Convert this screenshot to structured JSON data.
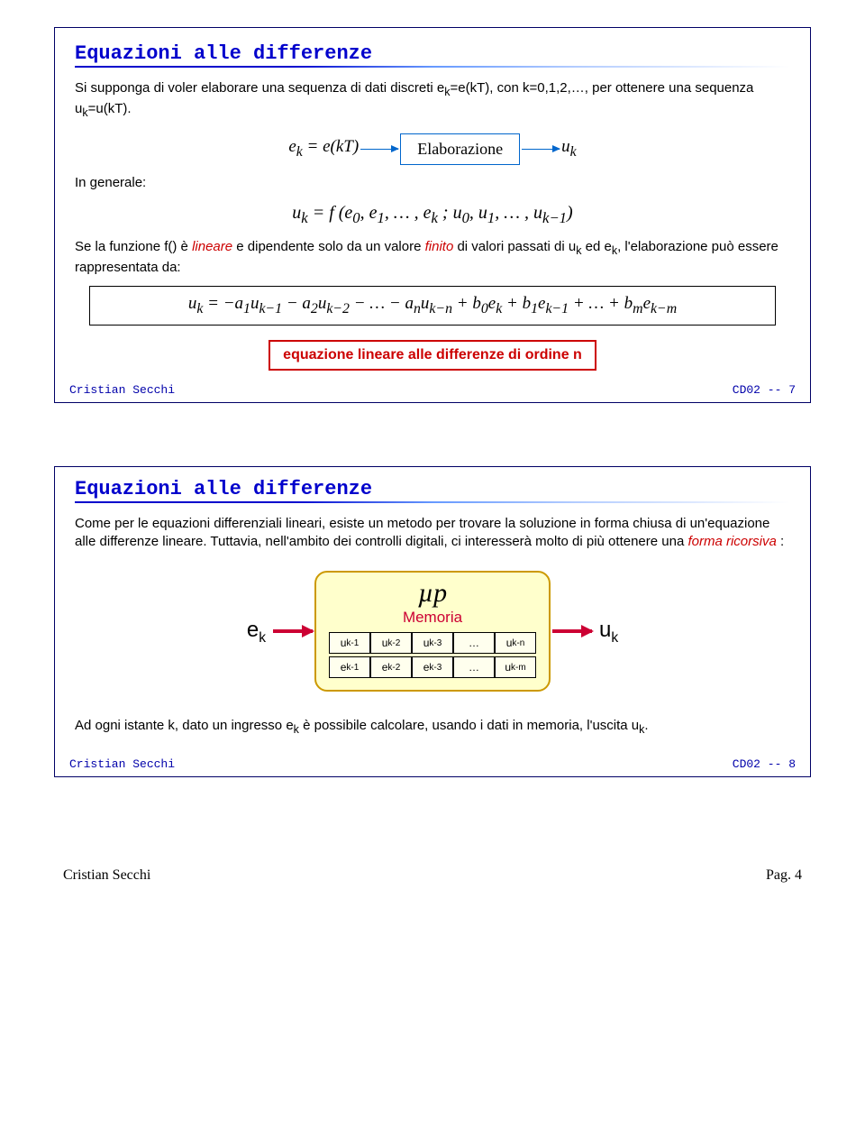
{
  "page": {
    "footer_left": "Cristian Secchi",
    "footer_right": "Pag. 4"
  },
  "slide7": {
    "title": "Equazioni alle differenze",
    "intro_html": "Si supponga di voler elaborare una sequenza di dati discreti e<sub>k</sub>=e(kT), con k=0,1,2,…, per ottenere una sequenza u<sub>k</sub>=u(kT).",
    "elab": {
      "left": "e<sub>k</sub> = e(kT)",
      "box": "Elaborazione",
      "right": "u<sub>k</sub>",
      "arrow_color": "#0066cc"
    },
    "general_label": "In generale:",
    "general_eq": "u<sub>k</sub> = f (e<sub>0</sub>, e<sub>1</sub>, … , e<sub>k</sub> ; u<sub>0</sub>, u<sub>1</sub>, … , u<sub>k−1</sub>)",
    "middle_html": "Se la funzione f() è <span class=\"italic\" style=\"color:#cc0000\">lineare</span> e dipendente solo da un valore <span class=\"italic\" style=\"color:#cc0000\">finito</span> di valori passati di u<sub>k</sub> ed e<sub>k</sub>, l'elaborazione può essere rappresentata da:",
    "main_eq": "u<sub>k</sub> = −a<sub>1</sub>u<sub>k−1</sub> − a<sub>2</sub>u<sub>k−2</sub> − … − a<sub>n</sub>u<sub>k−n</sub> + b<sub>0</sub>e<sub>k</sub> + b<sub>1</sub>e<sub>k−1</sub> + … + b<sub>m</sub>e<sub>k−m</sub>",
    "red_box": "equazione lineare alle differenze di ordine n",
    "footer_left": "Cristian Secchi",
    "footer_right": "CD02 -- 7",
    "colors": {
      "title": "#0000cc",
      "border": "#000066",
      "red": "#cc0000"
    }
  },
  "slide8": {
    "title": "Equazioni alle differenze",
    "intro_html": "Come per le equazioni differenziali lineari, esiste un metodo per trovare la soluzione in forma chiusa di un'equazione alle differenze lineare. Tuttavia, nell'ambito dei controlli digitali, ci interesserà molto di più ottenere una <span class=\"italic\" style=\"color:#cc0000\">forma ricorsiva</span> :",
    "mup": {
      "input": "e<span class=\"s\">k</span>",
      "output": "u<span class=\"s\">k</span>",
      "title": "µp",
      "mem_label": "Memoria",
      "row_u": [
        "u<sub>k-1</sub>",
        "u<sub>k-2</sub>",
        "u<sub>k-3</sub>",
        "…",
        "u<sub>k-n</sub>"
      ],
      "row_e": [
        "e<sub>k-1</sub>",
        "e<sub>k-2</sub>",
        "e<sub>k-3</sub>",
        "…",
        "u<sub>k-m</sub>"
      ],
      "box_border": "#cc9900",
      "box_bg": "#ffffcc",
      "arrow_color": "#cc0033"
    },
    "outro_html": "Ad ogni istante k, dato un ingresso e<sub>k</sub> è possibile calcolare, usando i dati in memoria, l'uscita u<sub>k</sub>.",
    "footer_left": "Cristian Secchi",
    "footer_right": "CD02 -- 8"
  }
}
